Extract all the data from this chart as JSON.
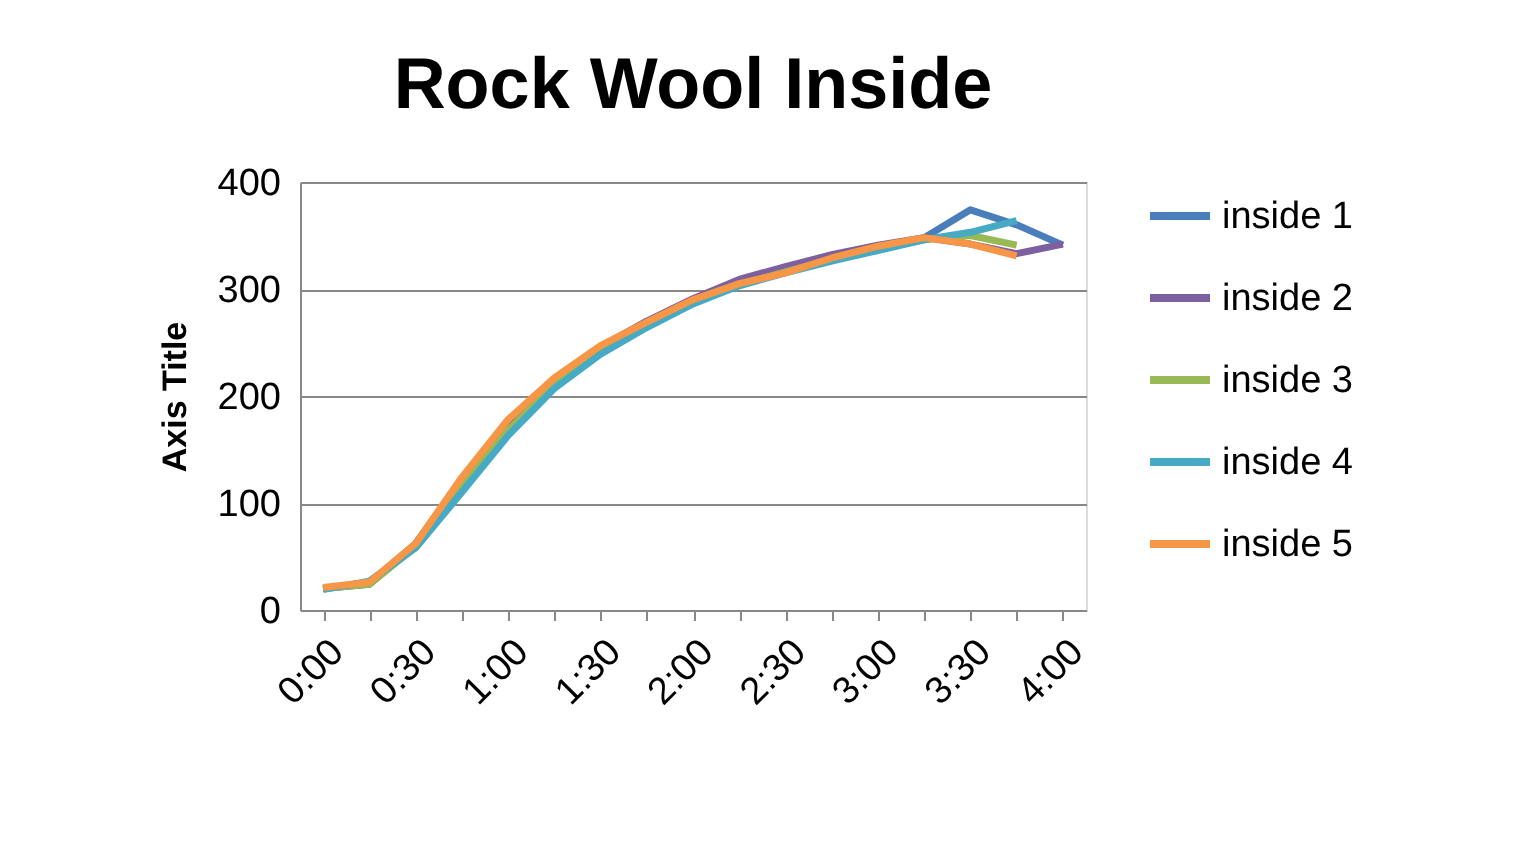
{
  "chart_data": {
    "type": "line",
    "title": "Rock Wool Inside",
    "ylabel": "Axis Title",
    "categories": [
      "0:00",
      null,
      "0:30",
      null,
      "1:00",
      null,
      "1:30",
      null,
      "2:00",
      null,
      "2:30",
      null,
      "3:00",
      null,
      "3:30",
      null,
      "4:00"
    ],
    "series": [
      {
        "name": "inside 1",
        "color": "#4a7ebb",
        "values": [
          20,
          24,
          60,
          118,
          172,
          212,
          243,
          267,
          288,
          304,
          316,
          328,
          338,
          348,
          374,
          360,
          341
        ]
      },
      {
        "name": "inside 2",
        "color": "#7d60a0",
        "values": [
          20,
          25,
          62,
          122,
          175,
          215,
          246,
          270,
          291,
          309,
          321,
          332,
          341,
          348,
          342,
          333,
          342
        ]
      },
      {
        "name": "inside 3",
        "color": "#98b954",
        "values": [
          20,
          24,
          59,
          115,
          168,
          210,
          242,
          266,
          287,
          304,
          316,
          328,
          338,
          346,
          350,
          341,
          null
        ]
      },
      {
        "name": "inside 4",
        "color": "#46aac5",
        "values": [
          19,
          27,
          58,
          110,
          163,
          207,
          239,
          264,
          286,
          303,
          315,
          326,
          336,
          346,
          353,
          364,
          null
        ]
      },
      {
        "name": "inside 5",
        "color": "#f79646",
        "values": [
          21,
          26,
          62,
          124,
          178,
          217,
          247,
          269,
          290,
          305,
          315,
          329,
          340,
          348,
          342,
          331,
          null
        ]
      }
    ],
    "ylim": [
      0,
      400
    ],
    "yticks": [
      0,
      100,
      200,
      300,
      400
    ],
    "grid": "y",
    "legend": "right"
  }
}
